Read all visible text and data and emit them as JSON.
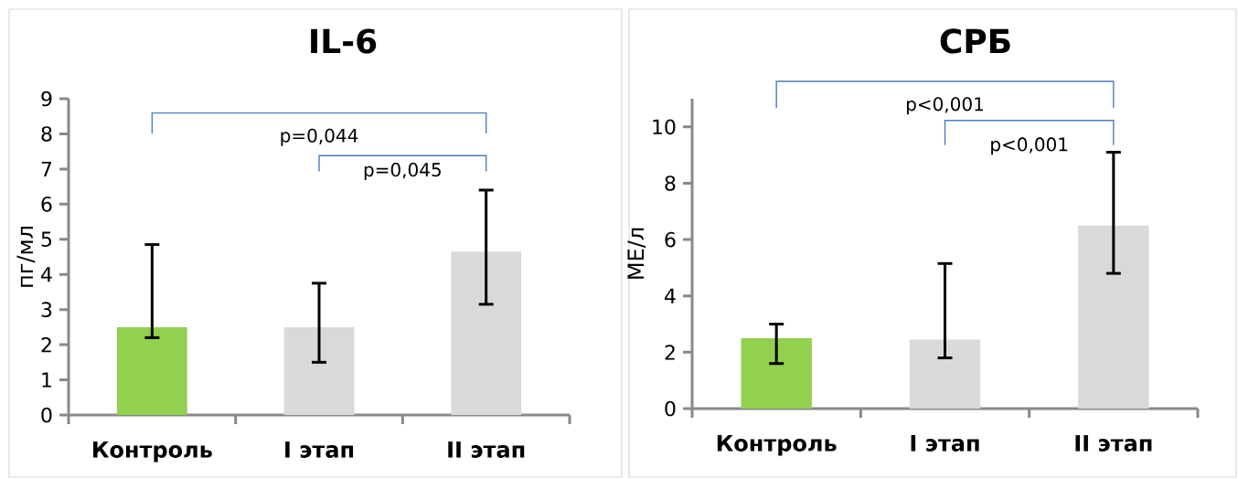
{
  "chart_data": [
    {
      "type": "bar",
      "title": "IL-6",
      "ylabel": "пг/мл",
      "categories": [
        "Контроль",
        "I этап",
        "II этап"
      ],
      "values": [
        2.5,
        2.5,
        4.65
      ],
      "colors": [
        "#92d050",
        "#d9d9d9",
        "#d9d9d9"
      ],
      "errors": [
        [
          2.2,
          4.85
        ],
        [
          1.5,
          3.75
        ],
        [
          3.15,
          6.4
        ]
      ],
      "ylim": [
        0,
        9
      ],
      "yticks": [
        0,
        1,
        2,
        3,
        4,
        5,
        6,
        7,
        8,
        9
      ],
      "annotations": [
        "p=0,044",
        "p=0,045"
      ]
    },
    {
      "type": "bar",
      "title": "СРБ",
      "ylabel": "МЕ/л",
      "categories": [
        "Контроль",
        "I этап",
        "II этап"
      ],
      "values": [
        2.5,
        2.45,
        6.5
      ],
      "colors": [
        "#92d050",
        "#d9d9d9",
        "#d9d9d9"
      ],
      "errors": [
        [
          1.6,
          3.0
        ],
        [
          1.8,
          5.15
        ],
        [
          4.8,
          9.1
        ]
      ],
      "ylim": [
        0,
        11
      ],
      "yticks": [
        0,
        2,
        4,
        6,
        8,
        10
      ],
      "annotations": [
        "p<0,001",
        "p<0,001"
      ]
    }
  ]
}
